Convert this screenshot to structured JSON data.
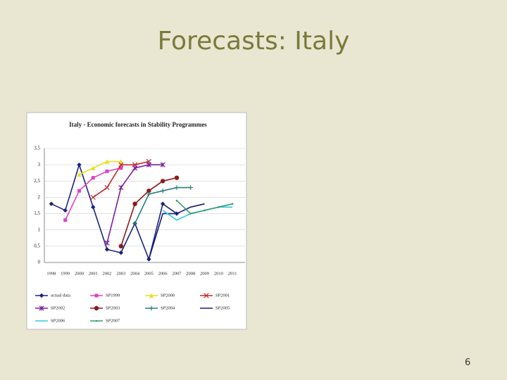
{
  "slide_title": "Forecasts: Italy",
  "page_number": "6",
  "chart_data": {
    "type": "line",
    "title": "Italy - Economic forecasts in Stability Programmes",
    "categories": [
      "1998",
      "1999",
      "2000",
      "2001",
      "2002",
      "2003",
      "2004",
      "2005",
      "2006",
      "2007",
      "2008",
      "2009",
      "2010",
      "2011"
    ],
    "ylim": [
      0,
      3.5
    ],
    "yticks": [
      0,
      {
        "value": 0.5,
        "label": "0,5"
      },
      1,
      {
        "value": 1.5,
        "label": "1,5"
      },
      2,
      {
        "value": 2.5,
        "label": "2,5"
      },
      3,
      {
        "value": 3.5,
        "label": "3,5"
      }
    ],
    "grid": true,
    "series": [
      {
        "name": "actual data",
        "color": "#1a237e",
        "marker": "diamond",
        "values": [
          1.8,
          1.6,
          3.0,
          1.7,
          0.4,
          0.3,
          1.2,
          0.1,
          1.8,
          1.5,
          null,
          null,
          null,
          null
        ]
      },
      {
        "name": "SP1999",
        "color": "#e040c8",
        "marker": "square",
        "values": [
          null,
          1.3,
          2.2,
          2.6,
          2.8,
          2.9,
          null,
          null,
          null,
          null,
          null,
          null,
          null,
          null
        ]
      },
      {
        "name": "SP2000",
        "color": "#e8e020",
        "marker": "triangle",
        "values": [
          null,
          null,
          2.7,
          2.9,
          3.1,
          3.1,
          null,
          null,
          null,
          null,
          null,
          null,
          null,
          null
        ]
      },
      {
        "name": "SP2001",
        "color": "#c62828",
        "marker": "x",
        "values": [
          null,
          null,
          null,
          2.0,
          2.3,
          3.0,
          3.0,
          3.1,
          null,
          null,
          null,
          null,
          null,
          null
        ]
      },
      {
        "name": "SP2002",
        "color": "#7b1fa2",
        "marker": "star",
        "values": [
          null,
          null,
          null,
          null,
          0.6,
          2.3,
          2.9,
          3.0,
          3.0,
          null,
          null,
          null,
          null,
          null
        ]
      },
      {
        "name": "SP2003",
        "color": "#8b1a1a",
        "marker": "circle",
        "values": [
          null,
          null,
          null,
          null,
          null,
          0.5,
          1.8,
          2.2,
          2.5,
          2.6,
          null,
          null,
          null,
          null
        ]
      },
      {
        "name": "SP2004",
        "color": "#26807a",
        "marker": "plus",
        "values": [
          null,
          null,
          null,
          null,
          null,
          null,
          1.2,
          2.1,
          2.2,
          2.3,
          2.3,
          null,
          null,
          null
        ]
      },
      {
        "name": "SP2005",
        "color": "#1a1a7a",
        "marker": "none",
        "values": [
          null,
          null,
          null,
          null,
          null,
          null,
          null,
          0.1,
          1.5,
          1.5,
          1.7,
          1.8,
          null,
          null
        ]
      },
      {
        "name": "SP2006",
        "color": "#30c8e0",
        "marker": "none",
        "values": [
          null,
          null,
          null,
          null,
          null,
          null,
          null,
          null,
          1.6,
          1.3,
          1.5,
          1.6,
          1.7,
          1.7
        ]
      },
      {
        "name": "SP2007",
        "color": "#3a9a70",
        "marker": "dot",
        "values": [
          null,
          null,
          null,
          null,
          null,
          null,
          null,
          null,
          null,
          1.9,
          1.5,
          1.6,
          1.7,
          1.8
        ]
      }
    ]
  }
}
